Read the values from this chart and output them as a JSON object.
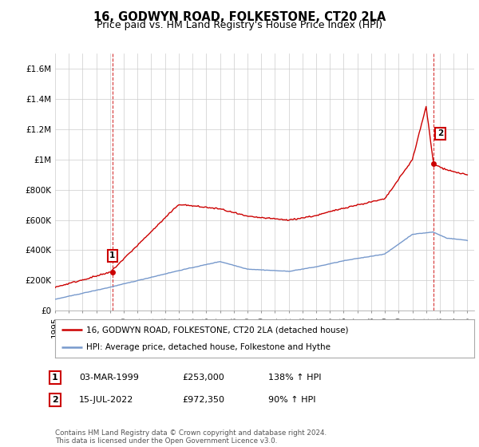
{
  "title": "16, GODWYN ROAD, FOLKESTONE, CT20 2LA",
  "subtitle": "Price paid vs. HM Land Registry's House Price Index (HPI)",
  "ylabel_ticks": [
    "£0",
    "£200K",
    "£400K",
    "£600K",
    "£800K",
    "£1M",
    "£1.2M",
    "£1.4M",
    "£1.6M"
  ],
  "ylim": [
    0,
    1700000
  ],
  "ytick_vals": [
    0,
    200000,
    400000,
    600000,
    800000,
    1000000,
    1200000,
    1400000,
    1600000
  ],
  "xmin_year": 1995.0,
  "xmax_year": 2025.5,
  "xtick_years": [
    1995,
    1996,
    1997,
    1998,
    1999,
    2000,
    2001,
    2002,
    2003,
    2004,
    2005,
    2006,
    2007,
    2008,
    2009,
    2010,
    2011,
    2012,
    2013,
    2014,
    2015,
    2016,
    2017,
    2018,
    2019,
    2020,
    2021,
    2022,
    2023,
    2024,
    2025
  ],
  "red_line_color": "#cc0000",
  "blue_line_color": "#7799cc",
  "grid_color": "#cccccc",
  "background_color": "#ffffff",
  "sale1_year": 1999.17,
  "sale1_price": 253000,
  "sale1_label": "1",
  "sale2_year": 2022.54,
  "sale2_price": 972350,
  "sale2_label": "2",
  "legend_entries": [
    "16, GODWYN ROAD, FOLKESTONE, CT20 2LA (detached house)",
    "HPI: Average price, detached house, Folkestone and Hythe"
  ],
  "row1_date": "03-MAR-1999",
  "row1_price": "£253,000",
  "row1_hpi": "138% ↑ HPI",
  "row2_date": "15-JUL-2022",
  "row2_price": "£972,350",
  "row2_hpi": "90% ↑ HPI",
  "footer": "Contains HM Land Registry data © Crown copyright and database right 2024.\nThis data is licensed under the Open Government Licence v3.0.",
  "title_fontsize": 10.5,
  "subtitle_fontsize": 9,
  "tick_fontsize": 7.5,
  "legend_fontsize": 7.5,
  "annot_fontsize": 8
}
